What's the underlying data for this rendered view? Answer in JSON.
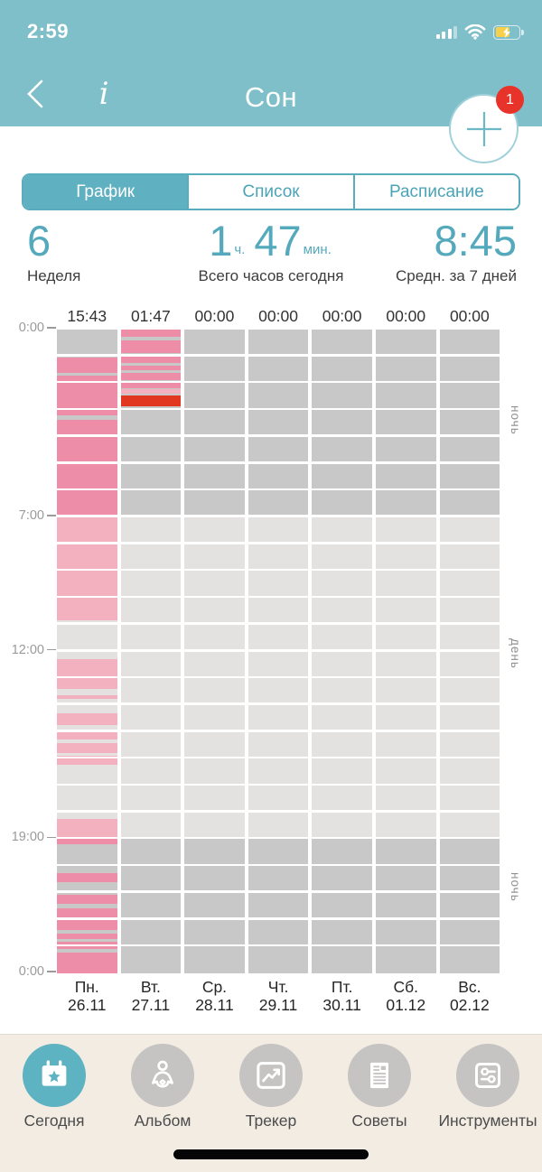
{
  "colors": {
    "header_teal": "#7fbfca",
    "accent_teal": "#54a9bc",
    "segment_selected": "#5fb0c0",
    "pink_night": "#ee8da7",
    "pink_day": "#f3b1c0",
    "red_active": "#e1361f",
    "gray_night": "#c9c8c8",
    "gray_day": "#e3e2e0",
    "badge_red": "#e8332a",
    "tabbar_bg": "#f2ece3",
    "tab_active": "#5db3c1",
    "tab_inactive": "#c5c4c2"
  },
  "status_bar": {
    "time": "2:59"
  },
  "header": {
    "title": "Сон",
    "info_label": "i",
    "add_badge": "1"
  },
  "segmented": {
    "options": [
      {
        "label": "График",
        "selected": true
      },
      {
        "label": "Список",
        "selected": false
      },
      {
        "label": "Расписание",
        "selected": false
      }
    ]
  },
  "stats": {
    "week": {
      "value": "6",
      "label": "Неделя"
    },
    "today": {
      "parts": [
        {
          "t": "1"
        },
        {
          "t": "ч."
        },
        {
          "t": "47"
        },
        {
          "t": "мин."
        }
      ],
      "label": "Всего часов сегодня"
    },
    "avg": {
      "value": "8:45",
      "label": "Средн. за 7 дней"
    }
  },
  "chart_data": {
    "type": "heatmap",
    "description": "Weekly sleep schedule: 24-hour columns per day, pink = sleep segments, red = active segment",
    "hours_range": [
      0,
      24
    ],
    "day_band": {
      "start": 7,
      "end": 19
    },
    "y_ticks": [
      {
        "hour": 0,
        "label": "0:00"
      },
      {
        "hour": 7,
        "label": "7:00"
      },
      {
        "hour": 12,
        "label": "12:00"
      },
      {
        "hour": 19,
        "label": "19:00"
      },
      {
        "hour": 24,
        "label": "0:00"
      }
    ],
    "side_labels": [
      {
        "text": "ночь",
        "center_hour": 3.5
      },
      {
        "text": "день",
        "center_hour": 12.2
      },
      {
        "text": "ночь",
        "center_hour": 20.9
      }
    ],
    "columns": [
      {
        "day": "Пн.",
        "date": "26.11",
        "total": "15:43",
        "segments": [
          {
            "start": 1.05,
            "end": 1.6,
            "kind": "n"
          },
          {
            "start": 1.73,
            "end": 3.2,
            "kind": "n"
          },
          {
            "start": 3.38,
            "end": 7.0,
            "kind": "n"
          },
          {
            "start": 7.0,
            "end": 10.85,
            "kind": "d"
          },
          {
            "start": 12.27,
            "end": 13.4,
            "kind": "d"
          },
          {
            "start": 13.63,
            "end": 13.78,
            "kind": "d"
          },
          {
            "start": 14.31,
            "end": 14.76,
            "kind": "d"
          },
          {
            "start": 14.9,
            "end": 15.27,
            "kind": "d"
          },
          {
            "start": 15.4,
            "end": 15.8,
            "kind": "d"
          },
          {
            "start": 15.9,
            "end": 16.24,
            "kind": "d"
          },
          {
            "start": 18.25,
            "end": 18.97,
            "kind": "d"
          },
          {
            "start": 18.97,
            "end": 19.2,
            "kind": "n"
          },
          {
            "start": 20.25,
            "end": 20.6,
            "kind": "n"
          },
          {
            "start": 21.08,
            "end": 21.4,
            "kind": "n"
          },
          {
            "start": 21.56,
            "end": 21.9,
            "kind": "n"
          },
          {
            "start": 22.0,
            "end": 22.4,
            "kind": "n"
          },
          {
            "start": 22.52,
            "end": 22.72,
            "kind": "n"
          },
          {
            "start": 22.82,
            "end": 23.1,
            "kind": "n"
          },
          {
            "start": 23.22,
            "end": 24.0,
            "kind": "n"
          }
        ]
      },
      {
        "day": "Вт.",
        "date": "27.11",
        "total": "01:47",
        "segments": [
          {
            "start": 0.0,
            "end": 0.27,
            "kind": "n"
          },
          {
            "start": 0.4,
            "end": 0.88,
            "kind": "n"
          },
          {
            "start": 1.0,
            "end": 1.25,
            "kind": "n"
          },
          {
            "start": 1.35,
            "end": 1.52,
            "kind": "n"
          },
          {
            "start": 1.62,
            "end": 1.88,
            "kind": "n"
          },
          {
            "start": 2.0,
            "end": 2.2,
            "kind": "n"
          },
          {
            "start": 2.22,
            "end": 2.38,
            "kind": "d"
          },
          {
            "start": 2.45,
            "end": 2.85,
            "kind": "r"
          }
        ]
      },
      {
        "day": "Ср.",
        "date": "28.11",
        "total": "00:00",
        "segments": []
      },
      {
        "day": "Чт.",
        "date": "29.11",
        "total": "00:00",
        "segments": []
      },
      {
        "day": "Пт.",
        "date": "30.11",
        "total": "00:00",
        "segments": []
      },
      {
        "day": "Сб.",
        "date": "01.12",
        "total": "00:00",
        "segments": []
      },
      {
        "day": "Вс.",
        "date": "02.12",
        "total": "00:00",
        "segments": []
      }
    ]
  },
  "tab_bar": {
    "items": [
      {
        "label": "Сегодня",
        "icon": "calendar-star-icon",
        "active": true
      },
      {
        "label": "Альбом",
        "icon": "baby-icon",
        "active": false
      },
      {
        "label": "Трекер",
        "icon": "trend-chart-icon",
        "active": false
      },
      {
        "label": "Советы",
        "icon": "article-icon",
        "active": false
      },
      {
        "label": "Инструменты",
        "icon": "sliders-icon",
        "active": false
      }
    ]
  }
}
